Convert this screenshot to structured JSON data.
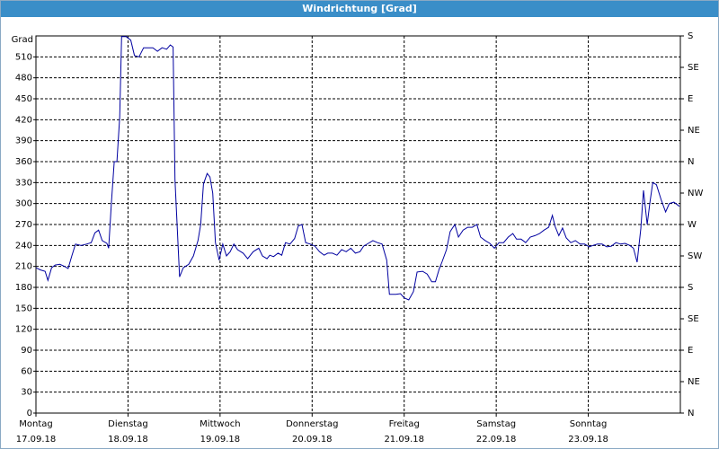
{
  "chart_data": {
    "type": "line",
    "title": "Windrichtung [Grad]",
    "y_label": "Grad",
    "xlim": [
      0,
      7
    ],
    "xticks": [
      {
        "value": 0,
        "label": "Montag",
        "date": "17.09.18"
      },
      {
        "value": 1,
        "label": "Dienstag",
        "date": "18.09.18"
      },
      {
        "value": 2,
        "label": "Mittwoch",
        "date": "19.09.18"
      },
      {
        "value": 3,
        "label": "Donnerstag",
        "date": "20.09.18"
      },
      {
        "value": 4,
        "label": "Freitag",
        "date": "21.09.18"
      },
      {
        "value": 5,
        "label": "Samstag",
        "date": "22.09.18"
      },
      {
        "value": 6,
        "label": "Sonntag",
        "date": "23.09.18"
      }
    ],
    "ylim": [
      0,
      540
    ],
    "yticks": [
      0,
      30,
      60,
      90,
      120,
      150,
      180,
      210,
      240,
      270,
      300,
      330,
      360,
      390,
      420,
      450,
      480,
      510
    ],
    "y2lim": [
      0,
      540
    ],
    "y2ticks": [
      {
        "value": 0,
        "label": "N"
      },
      {
        "value": 45,
        "label": "NE"
      },
      {
        "value": 90,
        "label": "E"
      },
      {
        "value": 135,
        "label": "SE"
      },
      {
        "value": 180,
        "label": "S"
      },
      {
        "value": 225,
        "label": "SW"
      },
      {
        "value": 270,
        "label": "W"
      },
      {
        "value": 315,
        "label": "NW"
      },
      {
        "value": 360,
        "label": "N"
      },
      {
        "value": 405,
        "label": "NE"
      },
      {
        "value": 450,
        "label": "E"
      },
      {
        "value": 495,
        "label": "SE"
      },
      {
        "value": 540,
        "label": "S"
      }
    ],
    "grid": true,
    "series": [
      {
        "color": "#0000a0",
        "x": [
          0,
          0.05,
          0.1,
          0.13,
          0.17,
          0.21,
          0.26,
          0.31,
          0.35,
          0.39,
          0.43,
          0.49,
          0.55,
          0.6,
          0.64,
          0.68,
          0.72,
          0.77,
          0.79,
          0.82,
          0.85,
          0.88,
          0.91,
          0.93,
          0.98,
          1.03,
          1.07,
          1.12,
          1.17,
          1.22,
          1.27,
          1.32,
          1.37,
          1.42,
          1.46,
          1.49,
          1.51,
          1.56,
          1.6,
          1.66,
          1.71,
          1.76,
          1.79,
          1.82,
          1.86,
          1.89,
          1.92,
          1.95,
          1.99,
          2.03,
          2.07,
          2.11,
          2.15,
          2.19,
          2.25,
          2.3,
          2.36,
          2.42,
          2.46,
          2.51,
          2.54,
          2.58,
          2.63,
          2.67,
          2.71,
          2.76,
          2.81,
          2.85,
          2.89,
          2.93,
          2.98,
          3.03,
          3.08,
          3.13,
          3.17,
          3.22,
          3.27,
          3.32,
          3.37,
          3.42,
          3.47,
          3.52,
          3.56,
          3.61,
          3.66,
          3.71,
          3.76,
          3.81,
          3.84,
          3.91,
          3.96,
          4.0,
          4.05,
          4.1,
          4.14,
          4.2,
          4.25,
          4.3,
          4.34,
          4.38,
          4.41,
          4.46,
          4.5,
          4.55,
          4.59,
          4.64,
          4.69,
          4.74,
          4.79,
          4.83,
          4.88,
          4.93,
          4.98,
          5.03,
          5.08,
          5.13,
          5.18,
          5.22,
          5.27,
          5.32,
          5.37,
          5.42,
          5.47,
          5.52,
          5.57,
          5.61,
          5.64,
          5.68,
          5.72,
          5.76,
          5.81,
          5.86,
          5.91,
          5.96,
          6.01,
          6.05,
          6.1,
          6.15,
          6.2,
          6.25,
          6.3,
          6.35,
          6.4,
          6.45,
          6.49,
          6.53,
          6.57,
          6.6,
          6.64,
          6.67,
          6.7,
          6.74,
          6.79,
          6.84,
          6.88,
          6.93,
          6.99
        ],
        "values": [
          208,
          205,
          203,
          190,
          208,
          212,
          213,
          210,
          207,
          225,
          242,
          240,
          242,
          244,
          258,
          262,
          247,
          243,
          236,
          302,
          360,
          360,
          424,
          539,
          539,
          534,
          512,
          510,
          523,
          523,
          523,
          518,
          523,
          521,
          527,
          524,
          334,
          195,
          208,
          213,
          225,
          247,
          270,
          328,
          343,
          338,
          315,
          244,
          219,
          242,
          225,
          231,
          242,
          234,
          229,
          221,
          231,
          236,
          225,
          221,
          226,
          224,
          229,
          226,
          244,
          242,
          250,
          268,
          270,
          244,
          242,
          239,
          231,
          226,
          229,
          229,
          226,
          234,
          231,
          236,
          229,
          231,
          239,
          243,
          247,
          244,
          242,
          219,
          170,
          170,
          171,
          165,
          162,
          174,
          202,
          203,
          199,
          188,
          188,
          206,
          216,
          234,
          260,
          270,
          252,
          262,
          266,
          266,
          270,
          252,
          247,
          243,
          236,
          244,
          244,
          252,
          257,
          249,
          249,
          244,
          252,
          254,
          257,
          262,
          266,
          283,
          267,
          254,
          265,
          251,
          244,
          247,
          242,
          242,
          238,
          240,
          242,
          242,
          238,
          239,
          244,
          242,
          243,
          240,
          236,
          216,
          264,
          319,
          270,
          302,
          330,
          327,
          306,
          288,
          300,
          302,
          296
        ]
      }
    ]
  }
}
